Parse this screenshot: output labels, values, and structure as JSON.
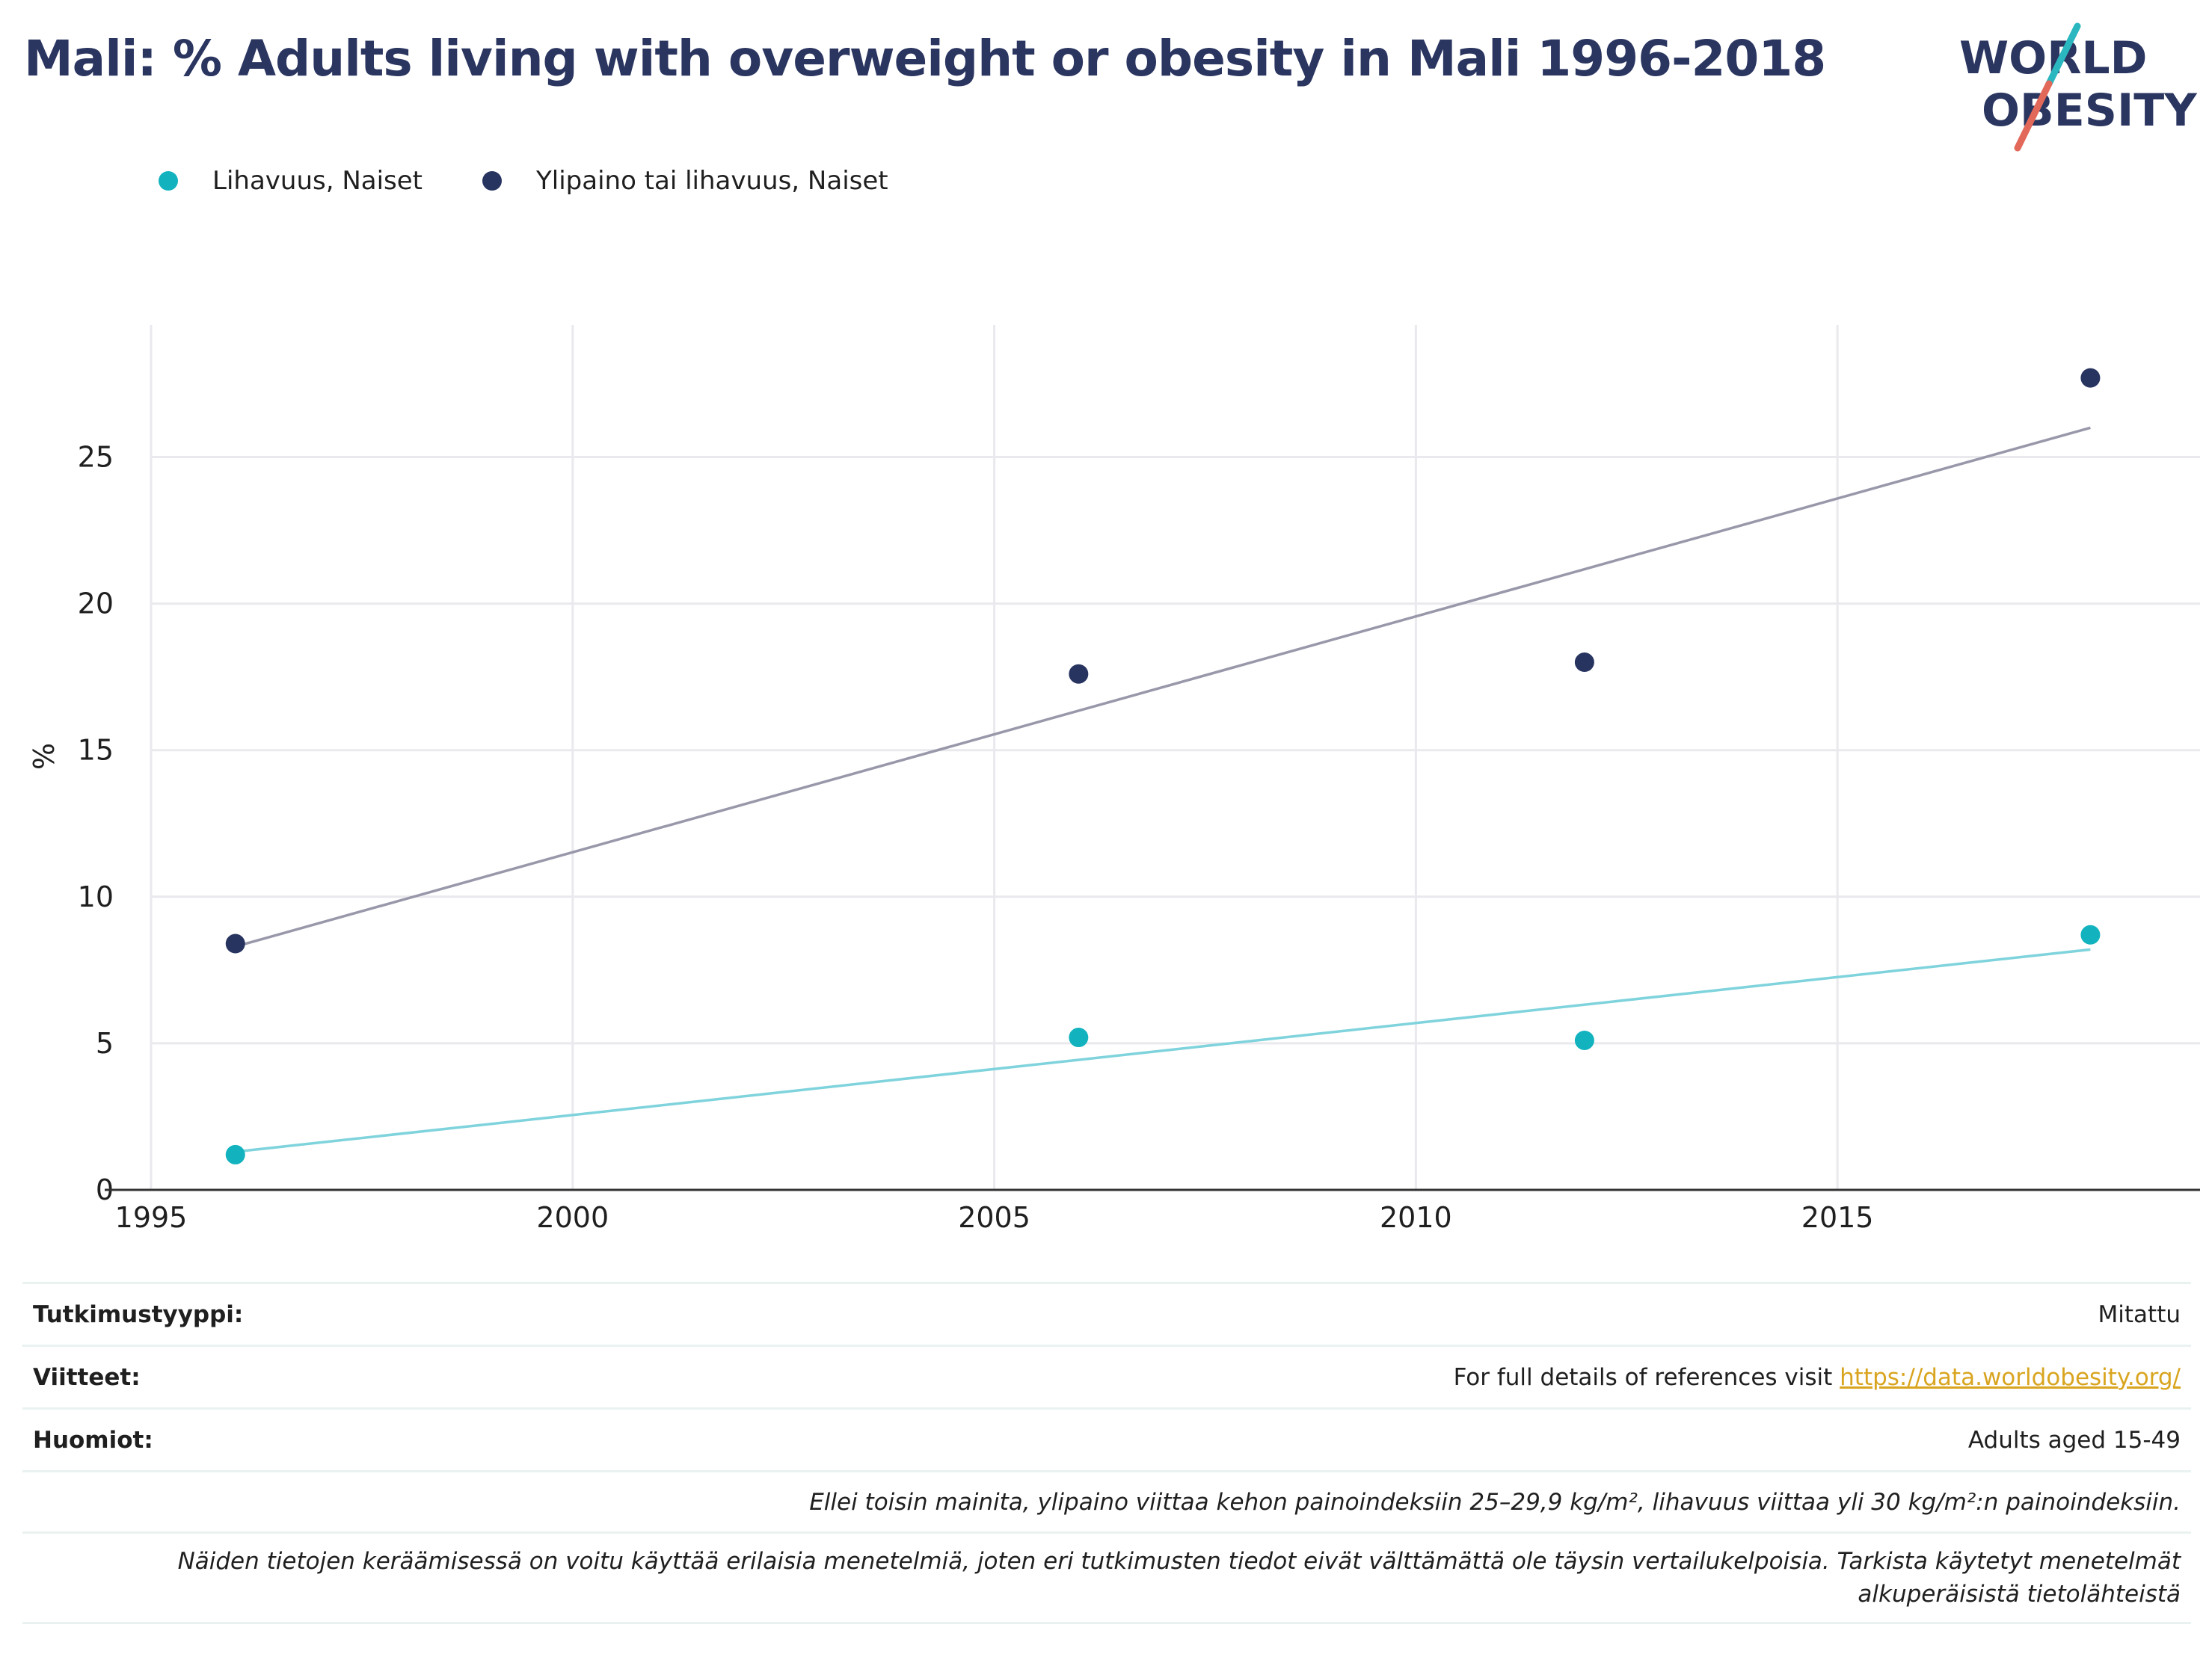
{
  "title": "Mali: % Adults living with overweight or obesity in Mali 1996-2018",
  "logo": {
    "line1": "WORLD",
    "line2": "OBESITY"
  },
  "colors": {
    "series_obesity": "#12b3bf",
    "series_overweight": "#283460",
    "trend_obesity": "#7fd3dc",
    "trend_overweight": "#9898aa",
    "title": "#2a3560",
    "link": "#d9a520",
    "grid": "#e9e9ee"
  },
  "legend": [
    {
      "label": "Lihavuus, Naiset",
      "color": "#12b3bf",
      "icon": "circle-marker"
    },
    {
      "label": "Ylipaino tai lihavuus, Naiset",
      "color": "#283460",
      "icon": "circle-marker"
    }
  ],
  "chart_data": {
    "type": "scatter",
    "title": "Mali: % Adults living with overweight or obesity in Mali 1996-2018",
    "xlabel": "",
    "ylabel": "%",
    "xlim": [
      1995,
      2019.3
    ],
    "ylim": [
      0,
      29.5
    ],
    "xticks": [
      1995,
      2000,
      2005,
      2010,
      2015
    ],
    "yticks": [
      0,
      5,
      10,
      15,
      20,
      25
    ],
    "grid": true,
    "legend_position": "top-left",
    "series": [
      {
        "name": "Lihavuus, Naiset",
        "color": "#12b3bf",
        "trend_color": "#7fd3dc",
        "x": [
          1996,
          2006,
          2012,
          2018
        ],
        "y": [
          1.2,
          5.2,
          5.1,
          8.7
        ],
        "trend": [
          [
            1996,
            1.3
          ],
          [
            2018,
            8.2
          ]
        ]
      },
      {
        "name": "Ylipaino tai lihavuus, Naiset",
        "color": "#283460",
        "trend_color": "#9898aa",
        "x": [
          1996,
          2006,
          2012,
          2018
        ],
        "y": [
          8.4,
          17.6,
          18.0,
          27.7
        ],
        "trend": [
          [
            1996,
            8.3
          ],
          [
            2018,
            26.0
          ]
        ]
      }
    ]
  },
  "info": {
    "study_type_label": "Tutkimustyyppi:",
    "study_type_value": "Mitattu",
    "references_label": "Viitteet:",
    "references_text": "For full details of references visit ",
    "references_link": "https://data.worldobesity.org/",
    "notes_label": "Huomiot:",
    "notes_value": "Adults aged 15-49",
    "definition_note": "Ellei toisin mainita, ylipaino viittaa kehon painoindeksiin 25–29,9 kg/m², lihavuus viittaa yli 30 kg/m²:n painoindeksiin.",
    "methods_note_line1": "Näiden tietojen keräämisessä on voitu käyttää erilaisia menetelmiä, joten eri tutkimusten tiedot eivät välttämättä ole täysin vertailukelpoisia. Tarkista käytetyt menetelmät",
    "methods_note_line2": "alkuperäisistä tietolähteistä"
  }
}
